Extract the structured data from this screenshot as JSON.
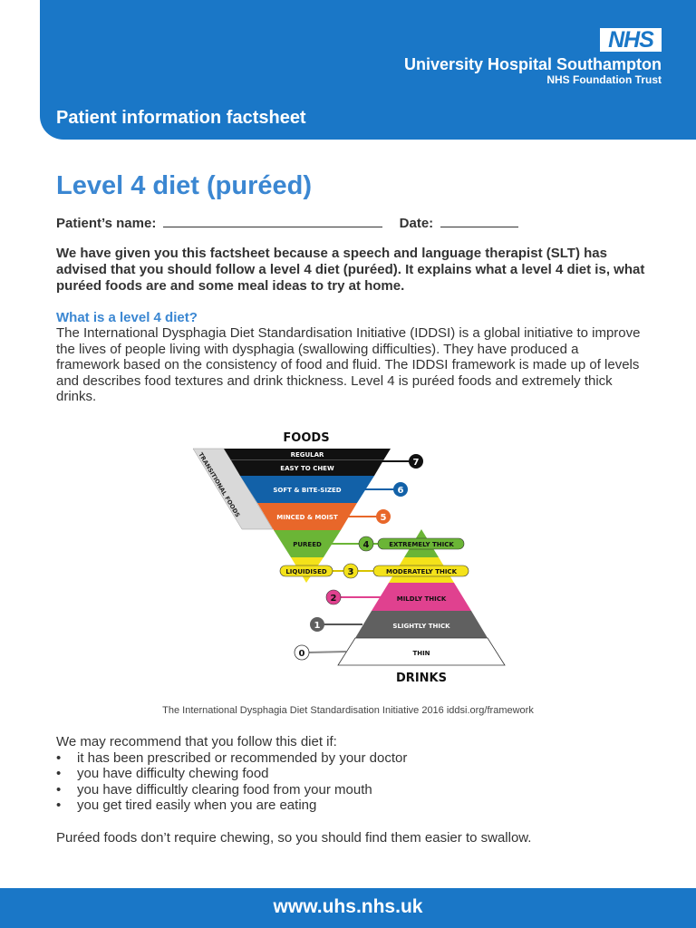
{
  "header": {
    "logo_text": "NHS",
    "organisation": "University Hospital Southampton",
    "trust": "NHS Foundation Trust",
    "subtitle": "Patient information factsheet",
    "brand_color": "#1a77c7"
  },
  "title": "Level 4 diet (puréed)",
  "form": {
    "name_label": "Patient’s name:",
    "date_label": "Date:"
  },
  "intro": "We have given you this factsheet because a speech and language therapist (SLT) has advised that you should follow a level 4 diet (puréed). It explains what a level 4 diet is, what puréed foods are and some meal ideas to try at home.",
  "section": {
    "heading": "What is a level 4 diet?",
    "body": "The International Dysphagia Diet Standardisation Initiative (IDDSI) is a global initiative to improve the lives of people living with dysphagia (swallowing difficulties). They have produced a framework based on the consistency of food and fluid. The IDDSI framework is made up of levels and describes food textures and drink thickness. Level 4 is puréed foods and extremely thick drinks."
  },
  "diagram": {
    "foods_title": "FOODS",
    "drinks_title": "DRINKS",
    "transitional": "TRANSITIONAL FOODS",
    "foods": [
      "REGULAR",
      "EASY TO CHEW",
      "SOFT & BITE-SIZED",
      "MINCED & MOIST",
      "PUREED",
      "LIQUIDISED"
    ],
    "drinks": [
      "EXTREMELY THICK",
      "MODERATELY THICK",
      "MILDLY THICK",
      "SLIGHTLY THICK",
      "THIN"
    ],
    "levels": [
      "7",
      "6",
      "5",
      "4",
      "3",
      "2",
      "1",
      "0"
    ]
  },
  "caption": "The International Dysphagia Diet Standardisation Initiative 2016 iddsi.org/framework",
  "recommend": {
    "lead": "We may recommend that you follow this diet if:",
    "items": [
      "it has been prescribed or recommended by your doctor",
      "you have difficulty chewing food",
      "you have difficultly clearing food from your mouth",
      "you get tired easily when you are eating"
    ]
  },
  "closing": "Puréed foods don’t require chewing, so you should find them easier to swallow.",
  "footer": {
    "url": "www.uhs.nhs.uk"
  }
}
